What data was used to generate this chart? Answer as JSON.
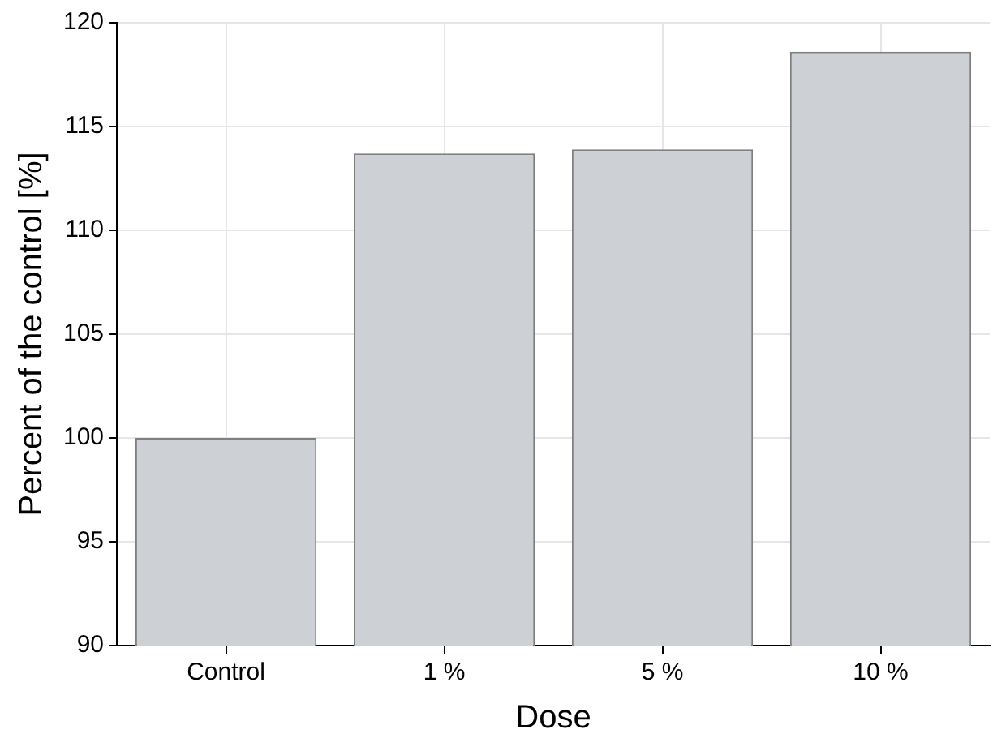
{
  "chart_data": {
    "type": "bar",
    "xlabel": "Dose",
    "ylabel": "Percent of the control [%]",
    "categories": [
      "Control",
      "1 %",
      "5 %",
      "10 %"
    ],
    "values": [
      100,
      113.7,
      113.9,
      118.6
    ],
    "color": "#cdd0d5",
    "ylim": [
      90,
      120
    ],
    "yticks": [
      90,
      95,
      100,
      105,
      110,
      115,
      120
    ],
    "grid": true
  }
}
